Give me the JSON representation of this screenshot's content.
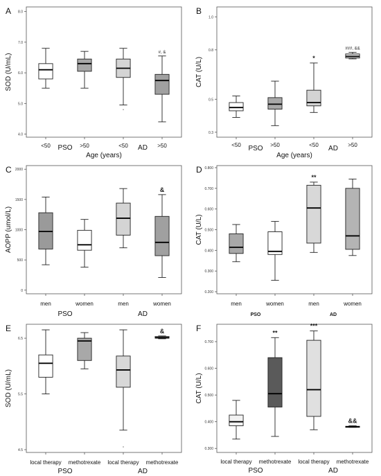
{
  "chart_data": [
    {
      "type": "boxplot",
      "panel_label": "A",
      "ylabel": "SOD (U/mL)",
      "xlabel": "Age (years)",
      "ylim": [
        3.9,
        8.15
      ],
      "yticks": [
        4.0,
        5.0,
        6.0,
        7.0,
        8.0
      ],
      "ytick_labels": [
        "4.0",
        "5.0",
        "6.0",
        "7.0",
        "8.0"
      ],
      "categories": [
        "<50",
        ">50",
        "<50",
        ">50"
      ],
      "group_labels": [
        "PSO",
        "AD"
      ],
      "fills": [
        "#ffffff",
        "#a8a8a8",
        "#d4d4d4",
        "#a0a0a0"
      ],
      "boxes": [
        {
          "whislo": 5.5,
          "q1": 5.8,
          "med": 6.1,
          "q3": 6.3,
          "whishi": 6.8
        },
        {
          "whislo": 5.5,
          "q1": 6.05,
          "med": 6.3,
          "q3": 6.45,
          "whishi": 6.7
        },
        {
          "whislo": 4.95,
          "q1": 5.85,
          "med": 6.15,
          "q3": 6.45,
          "whishi": 6.8
        },
        {
          "whislo": 4.4,
          "q1": 5.3,
          "med": 5.75,
          "q3": 5.95,
          "whishi": 6.55
        }
      ],
      "outliers": [
        [],
        [],
        [
          4.8
        ],
        []
      ],
      "annotations": [
        "",
        "",
        "",
        "#, &"
      ]
    },
    {
      "type": "boxplot",
      "panel_label": "B",
      "ylabel": "CAT (U/L)",
      "xlabel": "Age (years)",
      "ylim": [
        0.27,
        1.06
      ],
      "yticks": [
        0.3,
        0.5,
        0.8,
        1.0
      ],
      "ytick_labels": [
        "0.3",
        "0.5",
        "0.8",
        "1.0"
      ],
      "categories": [
        "<50",
        ">50",
        "<50",
        ">50"
      ],
      "group_labels": [
        "PSO",
        "AD"
      ],
      "fills": [
        "#ffffff",
        "#a8a8a8",
        "#d4d4d4",
        "#d8d8d8"
      ],
      "boxes": [
        {
          "whislo": 0.39,
          "q1": 0.43,
          "med": 0.45,
          "q3": 0.48,
          "whishi": 0.52
        },
        {
          "whislo": 0.34,
          "q1": 0.44,
          "med": 0.47,
          "q3": 0.51,
          "whishi": 0.61
        },
        {
          "whislo": 0.42,
          "q1": 0.46,
          "med": 0.48,
          "q3": 0.555,
          "whishi": 0.72
        },
        {
          "whislo": 0.745,
          "q1": 0.75,
          "med": 0.76,
          "q3": 0.775,
          "whishi": 0.785
        }
      ],
      "outliers": [
        [],
        [],
        [],
        []
      ],
      "annotations": [
        "",
        "",
        "*",
        "###, &&"
      ]
    },
    {
      "type": "boxplot",
      "panel_label": "C",
      "ylabel": "AOPP (umol/L)",
      "xlabel": "",
      "ylim": [
        -60,
        2060
      ],
      "yticks": [
        0,
        500,
        1000,
        1500,
        2000
      ],
      "ytick_labels": [
        "0",
        "500",
        "1000",
        "1500",
        "2000"
      ],
      "categories": [
        "men",
        "women",
        "men",
        "women"
      ],
      "group_labels": [
        "PSO",
        "AD"
      ],
      "fills": [
        "#9a9a9a",
        "#ffffff",
        "#d4d4d4",
        "#a0a0a0"
      ],
      "boxes": [
        {
          "whislo": 420,
          "q1": 680,
          "med": 970,
          "q3": 1280,
          "whishi": 1540
        },
        {
          "whislo": 380,
          "q1": 660,
          "med": 750,
          "q3": 990,
          "whishi": 1170
        },
        {
          "whislo": 700,
          "q1": 910,
          "med": 1190,
          "q3": 1440,
          "whishi": 1680
        },
        {
          "whislo": 210,
          "q1": 570,
          "med": 790,
          "q3": 1220,
          "whishi": 1580
        }
      ],
      "outliers": [
        [],
        [],
        [],
        []
      ],
      "annotations": [
        "",
        "",
        "",
        "&"
      ]
    },
    {
      "type": "boxplot",
      "panel_label": "D",
      "ylabel": "CAT (U/L)",
      "xlabel": "",
      "ylim": [
        0.19,
        0.81
      ],
      "yticks": [
        0.2,
        0.3,
        0.4,
        0.5,
        0.6,
        0.7,
        0.8
      ],
      "ytick_labels": [
        "0.200",
        "0.300",
        "0.400",
        "0.500",
        "0.600",
        "0.700",
        "0.800"
      ],
      "categories": [
        "men",
        "women",
        "men",
        "women"
      ],
      "group_labels": [
        "PSO",
        "AD"
      ],
      "fills": [
        "#a8a8a8",
        "#ffffff",
        "#d8d8d8",
        "#b4b4b4"
      ],
      "boxes": [
        {
          "whislo": 0.345,
          "q1": 0.385,
          "med": 0.415,
          "q3": 0.48,
          "whishi": 0.525
        },
        {
          "whislo": 0.255,
          "q1": 0.38,
          "med": 0.395,
          "q3": 0.49,
          "whishi": 0.54
        },
        {
          "whislo": 0.39,
          "q1": 0.435,
          "med": 0.605,
          "q3": 0.715,
          "whishi": 0.73
        },
        {
          "whislo": 0.375,
          "q1": 0.405,
          "med": 0.47,
          "q3": 0.7,
          "whishi": 0.745
        }
      ],
      "outliers": [
        [],
        [],
        [],
        []
      ],
      "annotations": [
        "",
        "",
        "**",
        ""
      ]
    },
    {
      "type": "boxplot",
      "panel_label": "E",
      "ylabel": "SOD (U/mL)",
      "xlabel": "",
      "ylim": [
        4.45,
        6.75
      ],
      "yticks": [
        4.5,
        5.5,
        6.5
      ],
      "ytick_labels": [
        "4.5",
        "5.5",
        "6.5"
      ],
      "categories": [
        "local therapy",
        "methotrexate",
        "local therapy",
        "methotrexate"
      ],
      "group_labels": [
        "PSO",
        "AD"
      ],
      "fills": [
        "#ffffff",
        "#a8a8a8",
        "#d8d8d8",
        "#c8c8c8"
      ],
      "boxes": [
        {
          "whislo": 5.5,
          "q1": 5.8,
          "med": 6.05,
          "q3": 6.2,
          "whishi": 6.65
        },
        {
          "whislo": 5.95,
          "q1": 6.1,
          "med": 6.45,
          "q3": 6.5,
          "whishi": 6.6
        },
        {
          "whislo": 4.85,
          "q1": 5.62,
          "med": 5.93,
          "q3": 6.18,
          "whishi": 6.65
        },
        {
          "whislo": 6.49,
          "q1": 6.5,
          "med": 6.51,
          "q3": 6.53,
          "whishi": 6.54
        }
      ],
      "outliers": [
        [],
        [],
        [
          4.55
        ],
        []
      ],
      "annotations": [
        "",
        "",
        "",
        "&"
      ]
    },
    {
      "type": "boxplot",
      "panel_label": "F",
      "ylabel": "CAT (U/L)",
      "xlabel": "",
      "ylim": [
        0.285,
        0.765
      ],
      "yticks": [
        0.3,
        0.4,
        0.5,
        0.6,
        0.7
      ],
      "ytick_labels": [
        "0.300",
        "0.400",
        "0.500",
        "0.600",
        "0.700"
      ],
      "categories": [
        "local therapy",
        "methotrexate",
        "local therapy",
        "methotrexate"
      ],
      "group_labels": [
        "PSO",
        "AD"
      ],
      "fills": [
        "#f2f2f2",
        "#5a5a5a",
        "#e0e0e0",
        "#4e4e4e"
      ],
      "boxes": [
        {
          "whislo": 0.335,
          "q1": 0.385,
          "med": 0.4,
          "q3": 0.425,
          "whishi": 0.48
        },
        {
          "whislo": 0.345,
          "q1": 0.455,
          "med": 0.505,
          "q3": 0.64,
          "whishi": 0.715
        },
        {
          "whislo": 0.37,
          "q1": 0.42,
          "med": 0.52,
          "q3": 0.705,
          "whishi": 0.74
        },
        {
          "whislo": 0.379,
          "q1": 0.38,
          "med": 0.381,
          "q3": 0.383,
          "whishi": 0.385
        }
      ],
      "outliers": [
        [],
        [],
        [],
        []
      ],
      "annotations": [
        "",
        "**",
        "***",
        "&&"
      ]
    }
  ]
}
